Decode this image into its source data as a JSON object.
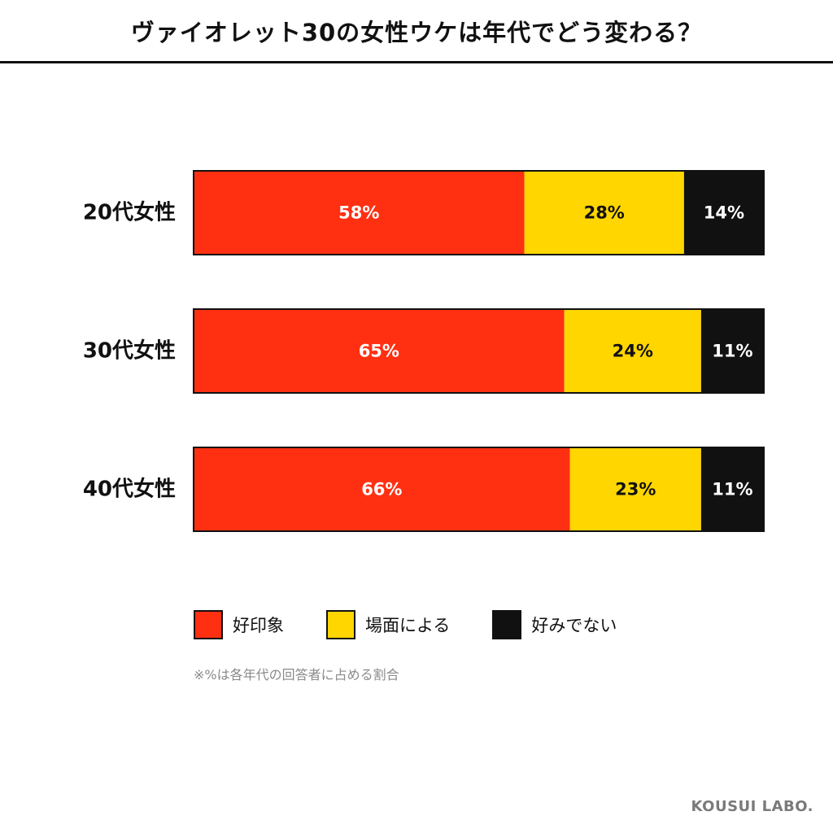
{
  "header": {
    "title": "ヴァイオレット30の女性ウケは年代でどう変わる？"
  },
  "chart_data": {
    "type": "bar",
    "orientation": "horizontal",
    "stacked": true,
    "normalized_to": 100,
    "title": "ヴァイオレット30の女性ウケは年代でどう変わる？",
    "categories": [
      "20代女性",
      "30代女性",
      "40代女性"
    ],
    "series": [
      {
        "name": "好印象",
        "values": [
          58,
          65,
          66
        ],
        "color": "#ff3012",
        "label_color": "#ffffff"
      },
      {
        "name": "場面による",
        "values": [
          28,
          24,
          23
        ],
        "color": "#ffd600",
        "label_color": "#111111"
      },
      {
        "name": "好みでない",
        "values": [
          14,
          11,
          11
        ],
        "color": "#111111",
        "label_color": "#ffffff"
      }
    ],
    "value_suffix": "%",
    "legend_position": "bottom",
    "grid": false,
    "xlim": [
      0,
      100
    ]
  },
  "footnote": "※%は各年代の回答者に占める割合",
  "brand": "KOUSUI LABO."
}
